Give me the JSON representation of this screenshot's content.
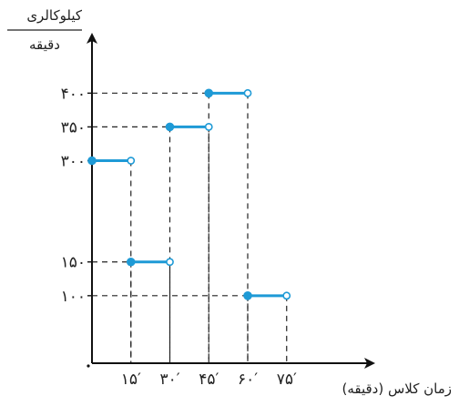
{
  "chart_data": {
    "type": "step",
    "title": "",
    "ylabel_numerator": "کیلوکالری",
    "ylabel_denominator": "دقیقه",
    "xlabel": "زمان کلاس (دقیقه)",
    "x_ticks": [
      15,
      30,
      45,
      60,
      75
    ],
    "x_tick_labels": [
      "۱۵′",
      "۳۰′",
      "۴۵′",
      "۶۰′",
      "۷۵′"
    ],
    "y_ticks": [
      100,
      150,
      300,
      350,
      400
    ],
    "y_tick_labels": [
      "۱۰۰",
      "۱۵۰",
      "۳۰۰",
      "۳۵۰",
      "۴۰۰"
    ],
    "xlim": [
      0,
      80
    ],
    "ylim": [
      0,
      460
    ],
    "grid": false,
    "guide_lines": "dashed",
    "segments": [
      {
        "x_start": 0,
        "x_end": 15,
        "y": 300,
        "start_closed": true,
        "end_closed": false
      },
      {
        "x_start": 15,
        "x_end": 30,
        "y": 150,
        "start_closed": true,
        "end_closed": false
      },
      {
        "x_start": 30,
        "x_end": 45,
        "y": 350,
        "start_closed": true,
        "end_closed": false
      },
      {
        "x_start": 45,
        "x_end": 60,
        "y": 400,
        "start_closed": true,
        "end_closed": false
      },
      {
        "x_start": 60,
        "x_end": 75,
        "y": 100,
        "start_closed": true,
        "end_closed": false
      }
    ]
  },
  "colors": {
    "segment": "#1e9ad6",
    "axis": "#111111",
    "guide": "#222222",
    "text": "#222222"
  }
}
